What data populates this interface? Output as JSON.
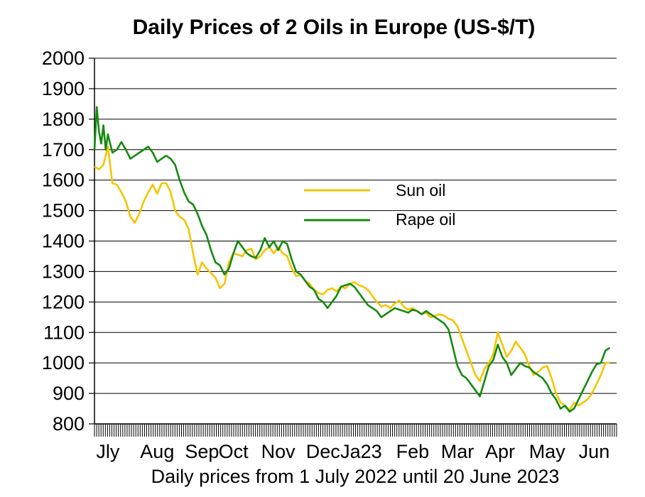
{
  "chart_data": {
    "type": "line",
    "title": "Daily Prices of 2 Oils in Europe (US-$/T)",
    "xlabel": "Daily prices from 1 July 2022 until 20 June 2023",
    "ylabel": "",
    "ylim": [
      800,
      2000
    ],
    "yticks": [
      800,
      900,
      1000,
      1100,
      1200,
      1300,
      1400,
      1500,
      1600,
      1700,
      1800,
      1900,
      2000
    ],
    "grid": true,
    "legend_position": "center-right",
    "x_domain": [
      0,
      11.65
    ],
    "month_labels": [
      {
        "label": "Jly",
        "x": 0.3
      },
      {
        "label": "Aug",
        "x": 1.4
      },
      {
        "label": "Sep",
        "x": 2.4
      },
      {
        "label": "Oct",
        "x": 3.1
      },
      {
        "label": "Nov",
        "x": 4.1
      },
      {
        "label": "Dec",
        "x": 5.1
      },
      {
        "label": "Ja23",
        "x": 5.95
      },
      {
        "label": "Feb",
        "x": 7.1
      },
      {
        "label": "Mar",
        "x": 8.1
      },
      {
        "label": "Apr",
        "x": 9.05
      },
      {
        "label": "May",
        "x": 10.1
      },
      {
        "label": "Jun",
        "x": 11.15
      }
    ],
    "series": [
      {
        "name": "Sun oil",
        "color": "#f5c400",
        "points": [
          [
            0.0,
            1645
          ],
          [
            0.1,
            1635
          ],
          [
            0.2,
            1650
          ],
          [
            0.3,
            1710
          ],
          [
            0.4,
            1590
          ],
          [
            0.5,
            1585
          ],
          [
            0.6,
            1560
          ],
          [
            0.7,
            1530
          ],
          [
            0.8,
            1480
          ],
          [
            0.9,
            1460
          ],
          [
            1.0,
            1490
          ],
          [
            1.1,
            1530
          ],
          [
            1.2,
            1560
          ],
          [
            1.3,
            1585
          ],
          [
            1.4,
            1555
          ],
          [
            1.5,
            1590
          ],
          [
            1.6,
            1590
          ],
          [
            1.7,
            1560
          ],
          [
            1.8,
            1500
          ],
          [
            1.9,
            1480
          ],
          [
            2.0,
            1470
          ],
          [
            2.1,
            1440
          ],
          [
            2.2,
            1360
          ],
          [
            2.3,
            1290
          ],
          [
            2.4,
            1330
          ],
          [
            2.5,
            1310
          ],
          [
            2.6,
            1295
          ],
          [
            2.7,
            1280
          ],
          [
            2.8,
            1245
          ],
          [
            2.9,
            1260
          ],
          [
            3.0,
            1330
          ],
          [
            3.1,
            1360
          ],
          [
            3.2,
            1355
          ],
          [
            3.3,
            1350
          ],
          [
            3.4,
            1370
          ],
          [
            3.5,
            1375
          ],
          [
            3.6,
            1340
          ],
          [
            3.7,
            1350
          ],
          [
            3.8,
            1370
          ],
          [
            3.9,
            1380
          ],
          [
            4.0,
            1360
          ],
          [
            4.1,
            1380
          ],
          [
            4.2,
            1360
          ],
          [
            4.3,
            1350
          ],
          [
            4.4,
            1310
          ],
          [
            4.5,
            1285
          ],
          [
            4.6,
            1290
          ],
          [
            4.7,
            1270
          ],
          [
            4.8,
            1260
          ],
          [
            4.9,
            1240
          ],
          [
            5.0,
            1230
          ],
          [
            5.1,
            1225
          ],
          [
            5.2,
            1240
          ],
          [
            5.3,
            1245
          ],
          [
            5.4,
            1235
          ],
          [
            5.5,
            1250
          ],
          [
            5.6,
            1245
          ],
          [
            5.7,
            1260
          ],
          [
            5.8,
            1265
          ],
          [
            5.9,
            1255
          ],
          [
            6.0,
            1250
          ],
          [
            6.1,
            1240
          ],
          [
            6.2,
            1220
          ],
          [
            6.3,
            1200
          ],
          [
            6.4,
            1185
          ],
          [
            6.5,
            1190
          ],
          [
            6.6,
            1180
          ],
          [
            6.7,
            1195
          ],
          [
            6.8,
            1205
          ],
          [
            6.9,
            1185
          ],
          [
            7.0,
            1175
          ],
          [
            7.1,
            1180
          ],
          [
            7.2,
            1170
          ],
          [
            7.3,
            1160
          ],
          [
            7.4,
            1165
          ],
          [
            7.5,
            1150
          ],
          [
            7.6,
            1155
          ],
          [
            7.7,
            1160
          ],
          [
            7.8,
            1155
          ],
          [
            7.9,
            1145
          ],
          [
            8.0,
            1140
          ],
          [
            8.1,
            1120
          ],
          [
            8.2,
            1080
          ],
          [
            8.3,
            1040
          ],
          [
            8.4,
            1000
          ],
          [
            8.5,
            960
          ],
          [
            8.6,
            940
          ],
          [
            8.7,
            980
          ],
          [
            8.8,
            1000
          ],
          [
            8.9,
            1030
          ],
          [
            9.0,
            1100
          ],
          [
            9.1,
            1060
          ],
          [
            9.2,
            1020
          ],
          [
            9.3,
            1040
          ],
          [
            9.4,
            1070
          ],
          [
            9.5,
            1050
          ],
          [
            9.6,
            1030
          ],
          [
            9.7,
            990
          ],
          [
            9.8,
            960
          ],
          [
            9.9,
            970
          ],
          [
            10.0,
            985
          ],
          [
            10.1,
            990
          ],
          [
            10.2,
            950
          ],
          [
            10.3,
            900
          ],
          [
            10.4,
            870
          ],
          [
            10.5,
            860
          ],
          [
            10.6,
            845
          ],
          [
            10.7,
            870
          ],
          [
            10.8,
            860
          ],
          [
            10.9,
            870
          ],
          [
            11.0,
            880
          ],
          [
            11.1,
            900
          ],
          [
            11.2,
            930
          ],
          [
            11.3,
            960
          ],
          [
            11.4,
            1000
          ],
          [
            11.5,
            1000
          ]
        ]
      },
      {
        "name": "Rape oil",
        "color": "#168a0e",
        "points": [
          [
            0.0,
            1700
          ],
          [
            0.05,
            1840
          ],
          [
            0.1,
            1760
          ],
          [
            0.15,
            1720
          ],
          [
            0.2,
            1780
          ],
          [
            0.25,
            1700
          ],
          [
            0.3,
            1750
          ],
          [
            0.4,
            1690
          ],
          [
            0.5,
            1700
          ],
          [
            0.6,
            1725
          ],
          [
            0.7,
            1700
          ],
          [
            0.8,
            1670
          ],
          [
            0.9,
            1680
          ],
          [
            1.0,
            1690
          ],
          [
            1.1,
            1700
          ],
          [
            1.2,
            1710
          ],
          [
            1.3,
            1690
          ],
          [
            1.4,
            1660
          ],
          [
            1.5,
            1670
          ],
          [
            1.6,
            1680
          ],
          [
            1.7,
            1670
          ],
          [
            1.8,
            1650
          ],
          [
            1.9,
            1600
          ],
          [
            2.0,
            1560
          ],
          [
            2.1,
            1530
          ],
          [
            2.2,
            1520
          ],
          [
            2.3,
            1490
          ],
          [
            2.4,
            1450
          ],
          [
            2.5,
            1420
          ],
          [
            2.6,
            1370
          ],
          [
            2.7,
            1330
          ],
          [
            2.8,
            1320
          ],
          [
            2.9,
            1290
          ],
          [
            3.0,
            1310
          ],
          [
            3.1,
            1360
          ],
          [
            3.2,
            1400
          ],
          [
            3.3,
            1380
          ],
          [
            3.4,
            1360
          ],
          [
            3.5,
            1350
          ],
          [
            3.6,
            1345
          ],
          [
            3.7,
            1370
          ],
          [
            3.8,
            1410
          ],
          [
            3.9,
            1380
          ],
          [
            4.0,
            1400
          ],
          [
            4.1,
            1370
          ],
          [
            4.2,
            1400
          ],
          [
            4.3,
            1390
          ],
          [
            4.4,
            1340
          ],
          [
            4.5,
            1300
          ],
          [
            4.6,
            1290
          ],
          [
            4.7,
            1270
          ],
          [
            4.8,
            1250
          ],
          [
            4.9,
            1240
          ],
          [
            5.0,
            1210
          ],
          [
            5.1,
            1200
          ],
          [
            5.2,
            1180
          ],
          [
            5.3,
            1200
          ],
          [
            5.4,
            1220
          ],
          [
            5.5,
            1250
          ],
          [
            5.6,
            1255
          ],
          [
            5.7,
            1260
          ],
          [
            5.8,
            1250
          ],
          [
            5.9,
            1230
          ],
          [
            6.0,
            1210
          ],
          [
            6.1,
            1190
          ],
          [
            6.2,
            1180
          ],
          [
            6.3,
            1170
          ],
          [
            6.4,
            1150
          ],
          [
            6.5,
            1160
          ],
          [
            6.6,
            1170
          ],
          [
            6.7,
            1180
          ],
          [
            6.8,
            1175
          ],
          [
            6.9,
            1170
          ],
          [
            7.0,
            1165
          ],
          [
            7.1,
            1175
          ],
          [
            7.2,
            1170
          ],
          [
            7.3,
            1160
          ],
          [
            7.4,
            1170
          ],
          [
            7.5,
            1160
          ],
          [
            7.6,
            1150
          ],
          [
            7.7,
            1140
          ],
          [
            7.8,
            1130
          ],
          [
            7.9,
            1110
          ],
          [
            8.0,
            1050
          ],
          [
            8.1,
            990
          ],
          [
            8.2,
            960
          ],
          [
            8.3,
            950
          ],
          [
            8.4,
            930
          ],
          [
            8.5,
            910
          ],
          [
            8.6,
            890
          ],
          [
            8.7,
            940
          ],
          [
            8.8,
            990
          ],
          [
            8.9,
            1010
          ],
          [
            9.0,
            1060
          ],
          [
            9.1,
            1020
          ],
          [
            9.2,
            1000
          ],
          [
            9.3,
            960
          ],
          [
            9.4,
            980
          ],
          [
            9.5,
            1000
          ],
          [
            9.6,
            990
          ],
          [
            9.7,
            985
          ],
          [
            9.8,
            970
          ],
          [
            9.9,
            960
          ],
          [
            10.0,
            950
          ],
          [
            10.1,
            930
          ],
          [
            10.2,
            900
          ],
          [
            10.3,
            880
          ],
          [
            10.4,
            850
          ],
          [
            10.5,
            860
          ],
          [
            10.6,
            840
          ],
          [
            10.7,
            850
          ],
          [
            10.8,
            880
          ],
          [
            10.9,
            910
          ],
          [
            11.0,
            940
          ],
          [
            11.1,
            970
          ],
          [
            11.2,
            995
          ],
          [
            11.3,
            1000
          ],
          [
            11.4,
            1040
          ],
          [
            11.5,
            1050
          ]
        ]
      }
    ]
  }
}
